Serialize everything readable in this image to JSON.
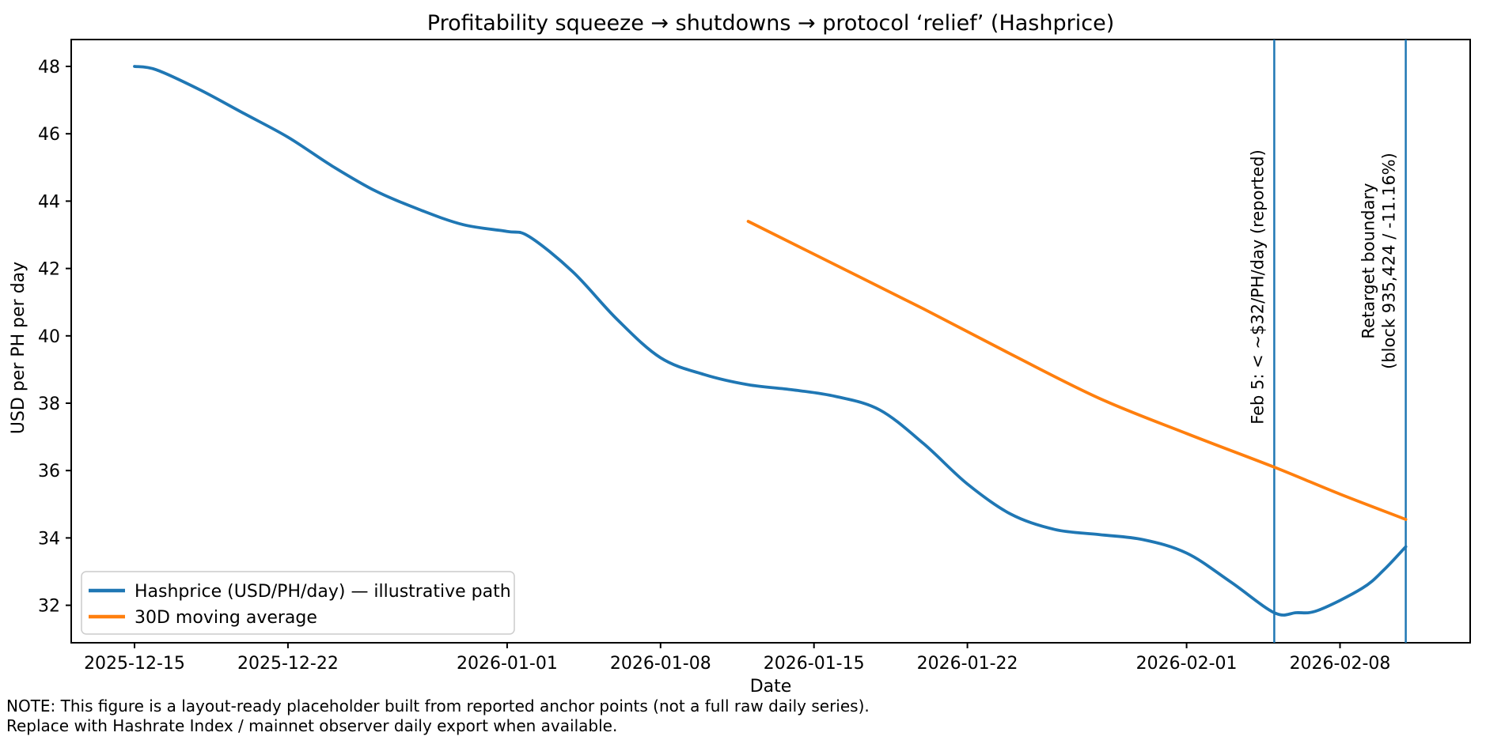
{
  "chart_data": {
    "type": "line",
    "title": "Profitability squeeze → shutdowns → protocol ‘relief’ (Hashprice)",
    "xlabel": "Date",
    "ylabel": "USD per PH per day",
    "grid": false,
    "legend_position": "lower left",
    "x_tick_labels": [
      "2025-12-15",
      "2025-12-22",
      "2026-01-01",
      "2026-01-08",
      "2026-01-15",
      "2026-01-22",
      "2026-02-01",
      "2026-02-08"
    ],
    "y_ticks": [
      32,
      34,
      36,
      38,
      40,
      42,
      44,
      46,
      48
    ],
    "ylim": [
      30.9,
      48.8
    ],
    "xlim": [
      "2025-12-12",
      "2026-02-14"
    ],
    "series": [
      {
        "name": "Hashprice (USD/PH/day) — illustrative path",
        "color": "#1f77b4",
        "points": [
          [
            "2025-12-15",
            48.0
          ],
          [
            "2025-12-16",
            47.9
          ],
          [
            "2025-12-18",
            47.3
          ],
          [
            "2025-12-20",
            46.6
          ],
          [
            "2025-12-22",
            45.9
          ],
          [
            "2025-12-24",
            45.05
          ],
          [
            "2025-12-26",
            44.3
          ],
          [
            "2025-12-28",
            43.75
          ],
          [
            "2025-12-30",
            43.3
          ],
          [
            "2026-01-01",
            43.1
          ],
          [
            "2026-01-02",
            42.95
          ],
          [
            "2026-01-04",
            41.9
          ],
          [
            "2026-01-06",
            40.5
          ],
          [
            "2026-01-08",
            39.35
          ],
          [
            "2026-01-10",
            38.85
          ],
          [
            "2026-01-12",
            38.55
          ],
          [
            "2026-01-14",
            38.4
          ],
          [
            "2026-01-16",
            38.2
          ],
          [
            "2026-01-18",
            37.8
          ],
          [
            "2026-01-20",
            36.8
          ],
          [
            "2026-01-22",
            35.6
          ],
          [
            "2026-01-24",
            34.7
          ],
          [
            "2026-01-26",
            34.25
          ],
          [
            "2026-01-28",
            34.1
          ],
          [
            "2026-01-30",
            33.95
          ],
          [
            "2026-02-01",
            33.55
          ],
          [
            "2026-02-03",
            32.7
          ],
          [
            "2026-02-05",
            31.78
          ],
          [
            "2026-02-06",
            31.78
          ],
          [
            "2026-02-07",
            31.85
          ],
          [
            "2026-02-09",
            32.5
          ],
          [
            "2026-02-10",
            33.05
          ],
          [
            "2026-02-11",
            33.74
          ]
        ]
      },
      {
        "name": "30D moving average",
        "color": "#ff7f0e",
        "points": [
          [
            "2026-01-12",
            43.4
          ],
          [
            "2026-01-16",
            42.1
          ],
          [
            "2026-01-20",
            40.8
          ],
          [
            "2026-01-24",
            39.45
          ],
          [
            "2026-01-28",
            38.15
          ],
          [
            "2026-02-01",
            37.1
          ],
          [
            "2026-02-05",
            36.1
          ],
          [
            "2026-02-08",
            35.3
          ],
          [
            "2026-02-11",
            34.55
          ]
        ]
      }
    ],
    "annotations": [
      {
        "date": "2026-02-05",
        "color": "#1f77b4",
        "text": "Feb 5: < ~$32/PH/day (reported)"
      },
      {
        "date": "2026-02-11",
        "color": "#1f77b4",
        "text_lines": [
          "Retarget boundary",
          "(block 935,424 / -11.16%)"
        ]
      }
    ],
    "notes": [
      "NOTE: This figure is a layout-ready placeholder built from reported anchor points (not a full raw daily series).",
      "Replace with Hashrate Index / mainnet observer daily export when available."
    ]
  }
}
